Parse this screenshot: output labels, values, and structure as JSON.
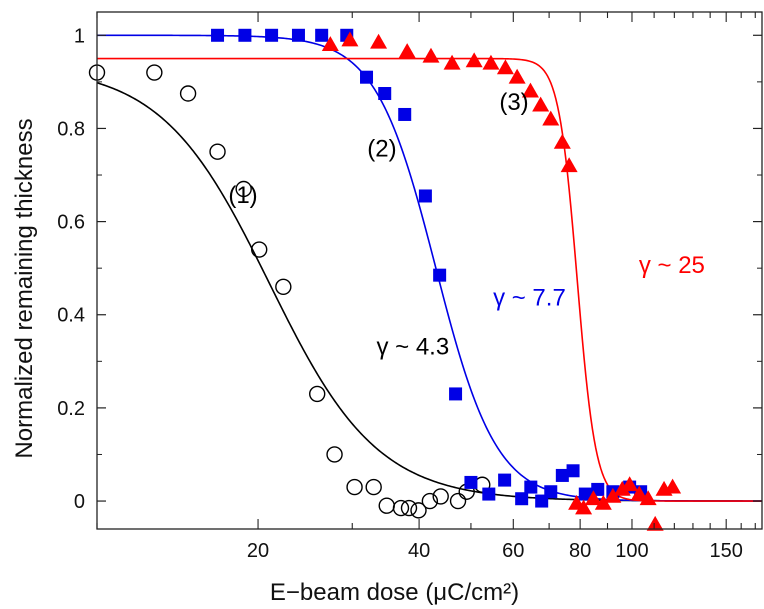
{
  "chart_data": {
    "type": "scatter",
    "title": "",
    "xlabel": "E−beam dose (μC/cm²)",
    "ylabel": "Normalized remaining thickness",
    "xscale": "log",
    "xlim": [
      10,
      175
    ],
    "ylim": [
      -0.06,
      1.05
    ],
    "xticks": [
      20,
      40,
      60,
      80,
      100,
      150
    ],
    "yticks": [
      0,
      0.2,
      0.4,
      0.6,
      0.8,
      1
    ],
    "ytick_labels": [
      "0",
      "0.2",
      "0.4",
      "0.6",
      "0.8",
      "1"
    ],
    "grid": false,
    "legend": "none",
    "series": [
      {
        "marker": "open-circle",
        "color": "#000000",
        "points": [
          [
            10,
            0.92
          ],
          [
            12.8,
            0.92
          ],
          [
            14.8,
            0.875
          ],
          [
            16.8,
            0.75
          ],
          [
            18.8,
            0.67
          ],
          [
            20.1,
            0.54
          ],
          [
            22.3,
            0.46
          ],
          [
            25.8,
            0.23
          ],
          [
            27.8,
            0.1
          ],
          [
            30.3,
            0.03
          ],
          [
            32.9,
            0.03
          ],
          [
            34.8,
            -0.01
          ],
          [
            37.0,
            -0.015
          ],
          [
            38.3,
            -0.015
          ],
          [
            39.9,
            -0.02
          ],
          [
            41.9,
            0.0
          ],
          [
            43.9,
            0.01
          ],
          [
            47.3,
            0.0
          ],
          [
            49.1,
            0.02
          ],
          [
            52.5,
            0.035
          ]
        ],
        "fit": {
          "x0": 21,
          "top": 0.935,
          "bottom": 0.0,
          "gamma": 4.3
        }
      },
      {
        "marker": "filled-square",
        "color": "#0000e6",
        "points": [
          [
            16.8,
            1.0
          ],
          [
            18.9,
            1.0
          ],
          [
            21.2,
            1.0
          ],
          [
            23.8,
            1.0
          ],
          [
            26.3,
            1.0
          ],
          [
            29.3,
            1.0
          ],
          [
            31.9,
            0.91
          ],
          [
            34.5,
            0.875
          ],
          [
            37.6,
            0.83
          ],
          [
            41.1,
            0.655
          ],
          [
            43.7,
            0.485
          ],
          [
            46.8,
            0.23
          ],
          [
            50.0,
            0.04
          ],
          [
            54.0,
            0.015
          ],
          [
            57.8,
            0.045
          ],
          [
            62.2,
            0.005
          ],
          [
            64.7,
            0.03
          ],
          [
            67.8,
            0.0
          ],
          [
            70.5,
            0.02
          ],
          [
            74.1,
            0.055
          ],
          [
            77.6,
            0.065
          ],
          [
            81.8,
            0.015
          ],
          [
            86.3,
            0.025
          ],
          [
            92.1,
            0.02
          ],
          [
            99.0,
            0.03
          ],
          [
            103.8,
            0.02
          ]
        ],
        "fit": {
          "x0": 43,
          "top": 1.0,
          "bottom": 0.0,
          "gamma": 7.7
        }
      },
      {
        "marker": "filled-triangle",
        "color": "#ff0000",
        "points": [
          [
            27.3,
            0.98
          ],
          [
            29.7,
            0.99
          ],
          [
            33.6,
            0.985
          ],
          [
            38.0,
            0.965
          ],
          [
            42.1,
            0.955
          ],
          [
            46.1,
            0.94
          ],
          [
            50.7,
            0.945
          ],
          [
            54.5,
            0.94
          ],
          [
            58.0,
            0.93
          ],
          [
            61.0,
            0.91
          ],
          [
            64.6,
            0.88
          ],
          [
            67.5,
            0.85
          ],
          [
            70.5,
            0.82
          ],
          [
            74.1,
            0.77
          ],
          [
            76.3,
            0.72
          ],
          [
            78.8,
            -0.005
          ],
          [
            81.2,
            -0.015
          ],
          [
            84.7,
            0.005
          ],
          [
            88.4,
            -0.005
          ],
          [
            92.1,
            0.01
          ],
          [
            95.9,
            0.025
          ],
          [
            99.0,
            0.035
          ],
          [
            103.2,
            0.015
          ],
          [
            107.2,
            0.005
          ],
          [
            110.5,
            -0.05
          ],
          [
            114.8,
            0.025
          ],
          [
            119.1,
            0.03
          ]
        ],
        "fit": {
          "x0": 79,
          "top": 0.95,
          "bottom": 0.0,
          "gamma": 25
        }
      }
    ],
    "annotations": [
      {
        "text": "(1)",
        "x": 17.6,
        "y": 0.64,
        "color": "#000000"
      },
      {
        "text": "(2)",
        "x": 32.0,
        "y": 0.74,
        "color": "#000000"
      },
      {
        "text": "(3)",
        "x": 56.5,
        "y": 0.84,
        "color": "#000000"
      },
      {
        "text": "γ ~ 4.3",
        "x": 33.3,
        "y": 0.315,
        "color": "#000000"
      },
      {
        "text": "γ ~ 7.7",
        "x": 55.0,
        "y": 0.42,
        "color": "#0000e6"
      },
      {
        "text": "γ ~ 25",
        "x": 103.0,
        "y": 0.49,
        "color": "#ff0000"
      }
    ]
  }
}
